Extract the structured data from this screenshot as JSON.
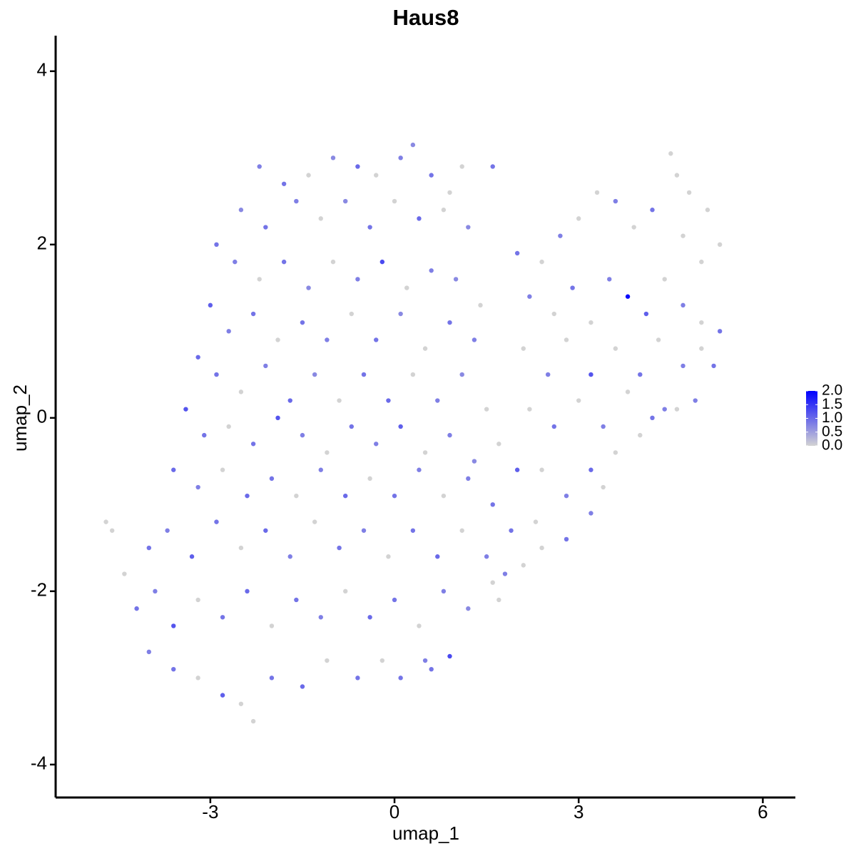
{
  "chart_data": {
    "type": "scatter",
    "title": "Haus8",
    "x_label": "umap_1",
    "y_label": "umap_2",
    "xlim": [
      -5.52,
      6.53
    ],
    "ylim": [
      -4.38,
      4.41
    ],
    "xticks": [
      -3,
      0,
      3,
      6
    ],
    "yticks": [
      -4,
      -2,
      0,
      2,
      4
    ],
    "color_low": "#D3D3D3",
    "color_high": "#0000FF",
    "clim": [
      0,
      2
    ],
    "colorbar_ticks": [
      {
        "value": 0,
        "label": "0.0"
      },
      {
        "value": 0.5,
        "label": "0.5"
      },
      {
        "value": 1,
        "label": "1.0"
      },
      {
        "value": 1.5,
        "label": "1.5"
      },
      {
        "value": 2,
        "label": "2.0"
      }
    ],
    "x": [
      -2.2,
      -1.8,
      -1.4,
      -1.0,
      -0.6,
      -0.3,
      0.1,
      0.3,
      0.6,
      0.9,
      1.1,
      1.6,
      -2.5,
      -2.1,
      -1.6,
      -1.2,
      -0.8,
      -0.4,
      0,
      0.4,
      0.8,
      1.2,
      -2.9,
      -2.6,
      -2.2,
      -1.8,
      -1.4,
      -1.0,
      -0.6,
      -0.2,
      0.2,
      0.6,
      1.0,
      1.4,
      -3.0,
      -2.7,
      -2.3,
      -1.9,
      -1.5,
      -1.1,
      -0.7,
      -0.3,
      0.1,
      0.5,
      0.9,
      1.3,
      -3.2,
      -2.9,
      -2.5,
      -2.1,
      -1.7,
      -1.3,
      -0.9,
      -0.5,
      -0.1,
      0.3,
      0.7,
      1.1,
      1.5,
      -3.4,
      -3.1,
      -2.7,
      -2.3,
      -1.9,
      -1.5,
      -1.1,
      -0.7,
      -0.3,
      0.1,
      0.5,
      0.9,
      1.3,
      1.7,
      -3.6,
      -3.2,
      -2.8,
      -2.4,
      -2.0,
      -1.6,
      -1.2,
      -0.8,
      -0.4,
      0.0,
      0.4,
      0.8,
      1.2,
      1.6,
      2.0,
      -4.7,
      -4.6,
      -4.4,
      -4.0,
      -3.7,
      -3.3,
      -2.9,
      -2.5,
      -2.1,
      -1.7,
      -1.3,
      -0.9,
      -0.5,
      -0.1,
      0.3,
      0.7,
      1.1,
      1.5,
      1.9,
      2.3,
      -4.2,
      -3.9,
      -3.6,
      -3.2,
      -2.8,
      -2.4,
      -2.0,
      -1.6,
      -1.2,
      -0.8,
      -0.4,
      0.0,
      0.4,
      0.8,
      1.2,
      1.6,
      -4.0,
      -3.6,
      -3.2,
      -2.8,
      -2.5,
      -2.3,
      -2.0,
      -1.5,
      -1.1,
      -0.6,
      -0.2,
      0.1,
      0.5,
      0.9,
      0.6,
      2.0,
      2.4,
      2.7,
      3.0,
      3.3,
      3.6,
      3.9,
      4.2,
      4.5,
      4.6,
      4.8,
      5.1,
      5.3,
      5.0,
      4.7,
      2.2,
      2.6,
      2.9,
      3.2,
      3.5,
      3.8,
      4.1,
      4.4,
      4.7,
      5.0,
      5.3,
      2.1,
      2.5,
      2.8,
      3.2,
      3.6,
      4.0,
      4.3,
      4.7,
      5.0,
      5.2,
      2.2,
      2.6,
      3.0,
      3.4,
      3.8,
      4.2,
      4.6,
      4.9,
      2.4,
      2.8,
      3.2,
      3.6,
      4.0,
      4.4,
      2.4,
      2.8,
      3.2,
      3.4,
      1.8,
      2.1,
      1.7
    ],
    "y": [
      2.9,
      2.7,
      2.8,
      3.0,
      2.9,
      2.8,
      3.0,
      3.15,
      2.8,
      2.6,
      2.9,
      2.9,
      2.4,
      2.2,
      2.5,
      2.3,
      2.5,
      2.2,
      2.5,
      2.3,
      2.4,
      2.2,
      2.0,
      1.8,
      1.6,
      1.8,
      1.5,
      1.8,
      1.6,
      1.8,
      1.5,
      1.7,
      1.6,
      1.3,
      1.3,
      1.0,
      1.2,
      0.9,
      1.1,
      0.9,
      1.2,
      0.9,
      1.2,
      0.8,
      1.1,
      0.9,
      0.7,
      0.5,
      0.3,
      0.6,
      0.2,
      0.5,
      0.2,
      0.5,
      0.2,
      0.5,
      0.2,
      0.5,
      0.1,
      0.1,
      -0.2,
      -0.1,
      -0.3,
      0.0,
      -0.2,
      -0.4,
      -0.1,
      -0.3,
      -0.1,
      -0.4,
      -0.2,
      -0.5,
      -0.3,
      -0.6,
      -0.8,
      -0.6,
      -0.9,
      -0.7,
      -0.9,
      -0.6,
      -0.9,
      -0.7,
      -0.9,
      -0.6,
      -0.9,
      -0.7,
      -1.0,
      -0.6,
      -1.2,
      -1.3,
      -1.8,
      -1.5,
      -1.3,
      -1.6,
      -1.2,
      -1.5,
      -1.3,
      -1.6,
      -1.2,
      -1.5,
      -1.3,
      -1.6,
      -1.3,
      -1.6,
      -1.3,
      -1.6,
      -1.3,
      -1.2,
      -2.2,
      -2.0,
      -2.4,
      -2.1,
      -2.3,
      -2.0,
      -2.4,
      -2.1,
      -2.3,
      -2.0,
      -2.3,
      -2.1,
      -2.4,
      -2.0,
      -2.2,
      -1.9,
      -2.7,
      -2.9,
      -3.0,
      -3.2,
      -3.3,
      -3.5,
      -3.0,
      -3.1,
      -2.8,
      -3.0,
      -2.8,
      -3.0,
      -2.8,
      -2.75,
      -2.9,
      1.9,
      1.8,
      2.1,
      2.3,
      2.6,
      2.5,
      2.2,
      2.4,
      3.05,
      2.8,
      2.6,
      2.4,
      2.0,
      1.8,
      2.1,
      1.4,
      1.2,
      1.5,
      1.1,
      1.6,
      1.4,
      1.2,
      1.6,
      1.3,
      1.1,
      1.0,
      0.8,
      0.5,
      0.9,
      0.5,
      0.8,
      0.5,
      0.9,
      0.6,
      0.8,
      0.6,
      0.1,
      -0.1,
      0.2,
      -0.1,
      0.3,
      0.0,
      0.1,
      0.2,
      -0.6,
      -0.9,
      -0.6,
      -0.4,
      -0.2,
      0.1,
      -1.5,
      -1.4,
      -1.1,
      -0.8,
      -1.8,
      -1.7,
      -2.1
    ],
    "values": [
      0.8,
      0.9,
      0,
      0.7,
      1.0,
      0,
      0.8,
      0.7,
      0.9,
      0,
      0,
      0.9,
      0.7,
      0.9,
      0.8,
      0,
      0.7,
      0.9,
      0,
      1.0,
      0,
      0.7,
      0.9,
      0.8,
      0,
      0.9,
      0.7,
      0,
      0.8,
      1.3,
      0,
      0.8,
      0.7,
      0,
      1.1,
      0.8,
      0.9,
      0,
      0.9,
      0.8,
      0,
      0.9,
      0.7,
      0,
      0.9,
      0.8,
      1.0,
      0.9,
      0,
      0.8,
      1.0,
      0.7,
      0,
      0.9,
      1.0,
      0,
      0.8,
      0.7,
      0,
      1.2,
      0.9,
      0,
      0.9,
      1.2,
      0.8,
      0,
      0.9,
      0.8,
      1.1,
      0,
      0.8,
      0.7,
      0,
      1.0,
      0.8,
      0,
      1.0,
      0.9,
      0,
      0.8,
      1.0,
      0,
      0.9,
      0.8,
      0,
      0.8,
      0.9,
      1.1,
      0,
      0,
      0,
      0.9,
      0.8,
      1.1,
      0.9,
      0,
      1.0,
      0.8,
      0,
      0.9,
      0.8,
      0,
      0.9,
      1.0,
      0,
      0.8,
      0.9,
      0,
      0.9,
      0.8,
      1.2,
      0,
      0.9,
      1.0,
      0,
      0.9,
      0.8,
      0,
      1.0,
      0.9,
      0,
      0.8,
      0.7,
      0,
      0.8,
      0.9,
      0,
      1.1,
      0,
      0,
      0.9,
      1.0,
      0,
      0.9,
      0,
      0.9,
      0.8,
      1.3,
      0.9,
      0.9,
      0,
      0.8,
      0,
      0,
      0.8,
      0,
      0.9,
      0,
      0,
      0,
      0,
      0,
      0,
      0,
      0.8,
      0,
      0.9,
      0,
      0.8,
      1.9,
      1.1,
      0,
      0.8,
      0,
      0.9,
      0,
      0.8,
      0,
      1.2,
      0,
      0.9,
      0,
      0.8,
      0,
      0.9,
      0,
      0.9,
      0,
      0.8,
      0,
      0.9,
      0,
      0.8,
      0,
      0.8,
      1.0,
      0,
      0,
      0.8,
      0,
      0.9,
      0.8,
      0,
      0.8,
      0,
      0
    ]
  }
}
